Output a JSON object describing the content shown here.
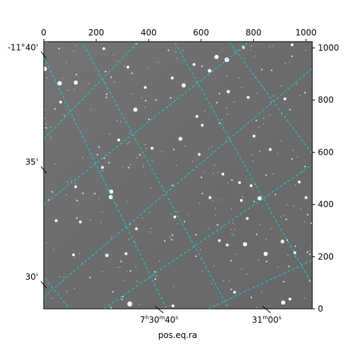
{
  "chart_data": {
    "type": "scatter",
    "description_free": true,
    "xlabel": "pos.eq.ra",
    "pixel_axes": {
      "x_ticks": [
        "0",
        "200",
        "400",
        "600",
        "800",
        "1000"
      ],
      "x_tick_values": [
        0,
        200,
        400,
        600,
        800,
        1000
      ],
      "y_ticks": [
        "0",
        "200",
        "400",
        "600",
        "800",
        "1000"
      ],
      "y_tick_values": [
        0,
        200,
        400,
        600,
        800,
        1000
      ],
      "xlim": [
        0,
        1024
      ],
      "ylim": [
        0,
        1024
      ]
    },
    "ra_ticks": [
      {
        "label_main": "7",
        "label_h": "h",
        "label_mid": "30",
        "label_m": "m",
        "label_sec": "40",
        "label_s": "s",
        "x": 440
      },
      {
        "label_main": "31",
        "label_m": "m",
        "label_sec": "00",
        "label_s": "s",
        "x": 850
      }
    ],
    "dec_ticks": [
      {
        "label": "-11°40'",
        "y": 970
      },
      {
        "label": "35'",
        "y": 530
      },
      {
        "label": "30'",
        "y": 90
      }
    ],
    "grid_color": "#00e5e5",
    "grid_style": "dashed",
    "background": "#6e6e6e"
  }
}
